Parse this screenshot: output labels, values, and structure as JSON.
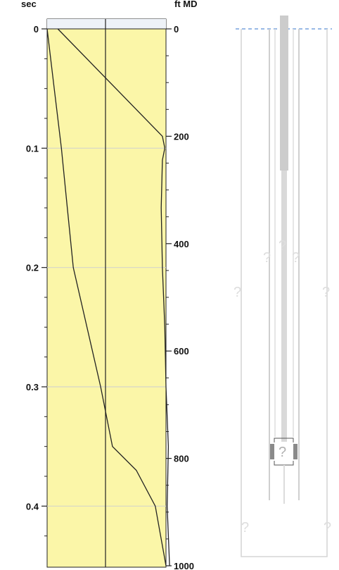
{
  "chart_data": {
    "type": "line",
    "title": "",
    "left_axis": {
      "unit_label": "sec",
      "ticks": [
        0,
        0.1,
        0.2,
        0.3,
        0.4
      ],
      "tick_labels": [
        "0",
        "0.1",
        "0.2",
        "0.3",
        "0.4"
      ],
      "range": [
        0,
        0.45
      ]
    },
    "right_axis": {
      "unit_label": "ft MD",
      "ticks": [
        0,
        200,
        400,
        600,
        800,
        1000
      ],
      "tick_labels": [
        "0",
        "200",
        "400",
        "600",
        "800",
        "1000"
      ],
      "range": [
        0,
        1000
      ]
    },
    "gridlines_at_sec": [
      0.1,
      0.2,
      0.3,
      0.4
    ],
    "track_fill_color": "#fbf6a8",
    "curve_color": "#222222",
    "series": [
      {
        "points": [
          [
            0.0,
            0.0
          ],
          [
            0.05,
            0.06
          ],
          [
            0.1,
            0.12
          ],
          [
            0.15,
            0.17
          ],
          [
            0.2,
            0.22
          ],
          [
            0.3,
            0.45
          ],
          [
            0.35,
            0.55
          ],
          [
            0.37,
            0.75
          ],
          [
            0.4,
            0.91
          ],
          [
            0.45,
            1.0
          ]
        ]
      },
      {
        "points": [
          [
            0.0,
            0.09
          ],
          [
            0.09,
            0.97
          ],
          [
            0.1,
            0.99
          ],
          [
            0.11,
            0.97
          ],
          [
            0.15,
            0.96
          ],
          [
            0.2,
            0.97
          ],
          [
            0.25,
            0.99
          ],
          [
            0.3,
            1.0
          ],
          [
            0.35,
            1.02
          ],
          [
            0.4,
            1.01
          ],
          [
            0.45,
            1.03
          ]
        ]
      }
    ]
  },
  "schematic": {
    "question_marks": [
      "?",
      "?",
      "?",
      "?",
      "?",
      "?",
      "?",
      "?"
    ],
    "line_color": "#d0d0d0",
    "reference_line_color": "#5b8fd6"
  }
}
